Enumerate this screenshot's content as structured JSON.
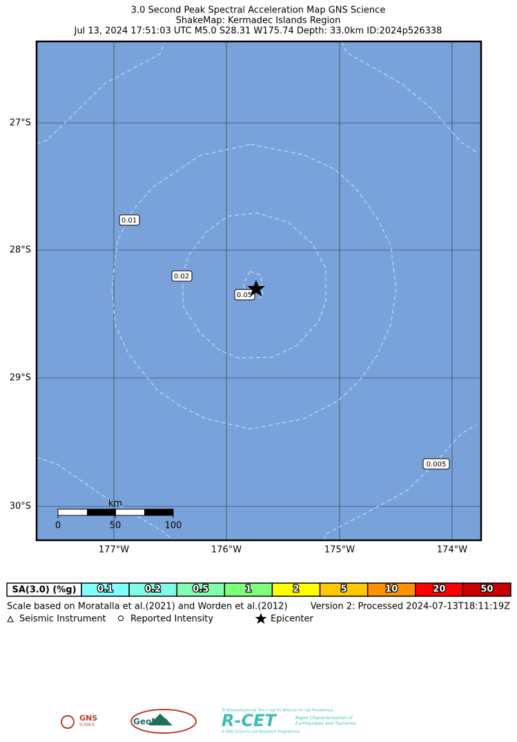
{
  "header": {
    "title_lines": [
      "3.0 Second Peak Spectral Acceleration Map GNS Science",
      "ShakeMap: Kermadec Islands Region",
      "Jul 13, 2024 17:51:03 UTC M5.0 S28.31 W175.74 Depth: 33.0km ID:2024p526338"
    ]
  },
  "map": {
    "lat_labels": [
      "27°S",
      "28°S",
      "29°S",
      "30°S"
    ],
    "lon_labels": [
      "177°W",
      "176°W",
      "175°W",
      "174°W"
    ],
    "contour_labels": [
      "0.01",
      "0.02",
      "0.05",
      "0.005"
    ],
    "scale_bar": {
      "unit": "km",
      "ticks": [
        "0",
        "50",
        "100"
      ]
    }
  },
  "legend": {
    "title": "SA(3.0) (%g)",
    "items": [
      {
        "label": "0.1",
        "color": "#80ffff"
      },
      {
        "label": "0.2",
        "color": "#7ffce8"
      },
      {
        "label": "0.5",
        "color": "#80ffb0"
      },
      {
        "label": "1",
        "color": "#7cff7a"
      },
      {
        "label": "2",
        "color": "#ffff00"
      },
      {
        "label": "5",
        "color": "#ffc800"
      },
      {
        "label": "10",
        "color": "#ff9100"
      },
      {
        "label": "20",
        "color": "#ff0000"
      },
      {
        "label": "50",
        "color": "#c80000"
      }
    ]
  },
  "footer": {
    "note": "Scale based on Moratalla et al.(2021) and Worden et al.(2012)",
    "version": "Version 2: Processed 2024-07-13T18:11:19Z",
    "symbols": [
      "Seismic Instrument",
      "Reported Intensity",
      "Epicenter"
    ]
  },
  "logos": {
    "gns": "GNS",
    "gns_sub": "SCIENCE",
    "geonet": "GeoNet",
    "rcet": "R-CET",
    "rcet_top": "Te Whakaahuatanga Tere o ngā Rū Whenua me ngā Parawhenua",
    "rcet_desc1": "Rapid Characterisation of",
    "rcet_desc2": "Earthquakes and Tsunamis",
    "rcet_foot": "A GNS Science Led Research Programme"
  }
}
